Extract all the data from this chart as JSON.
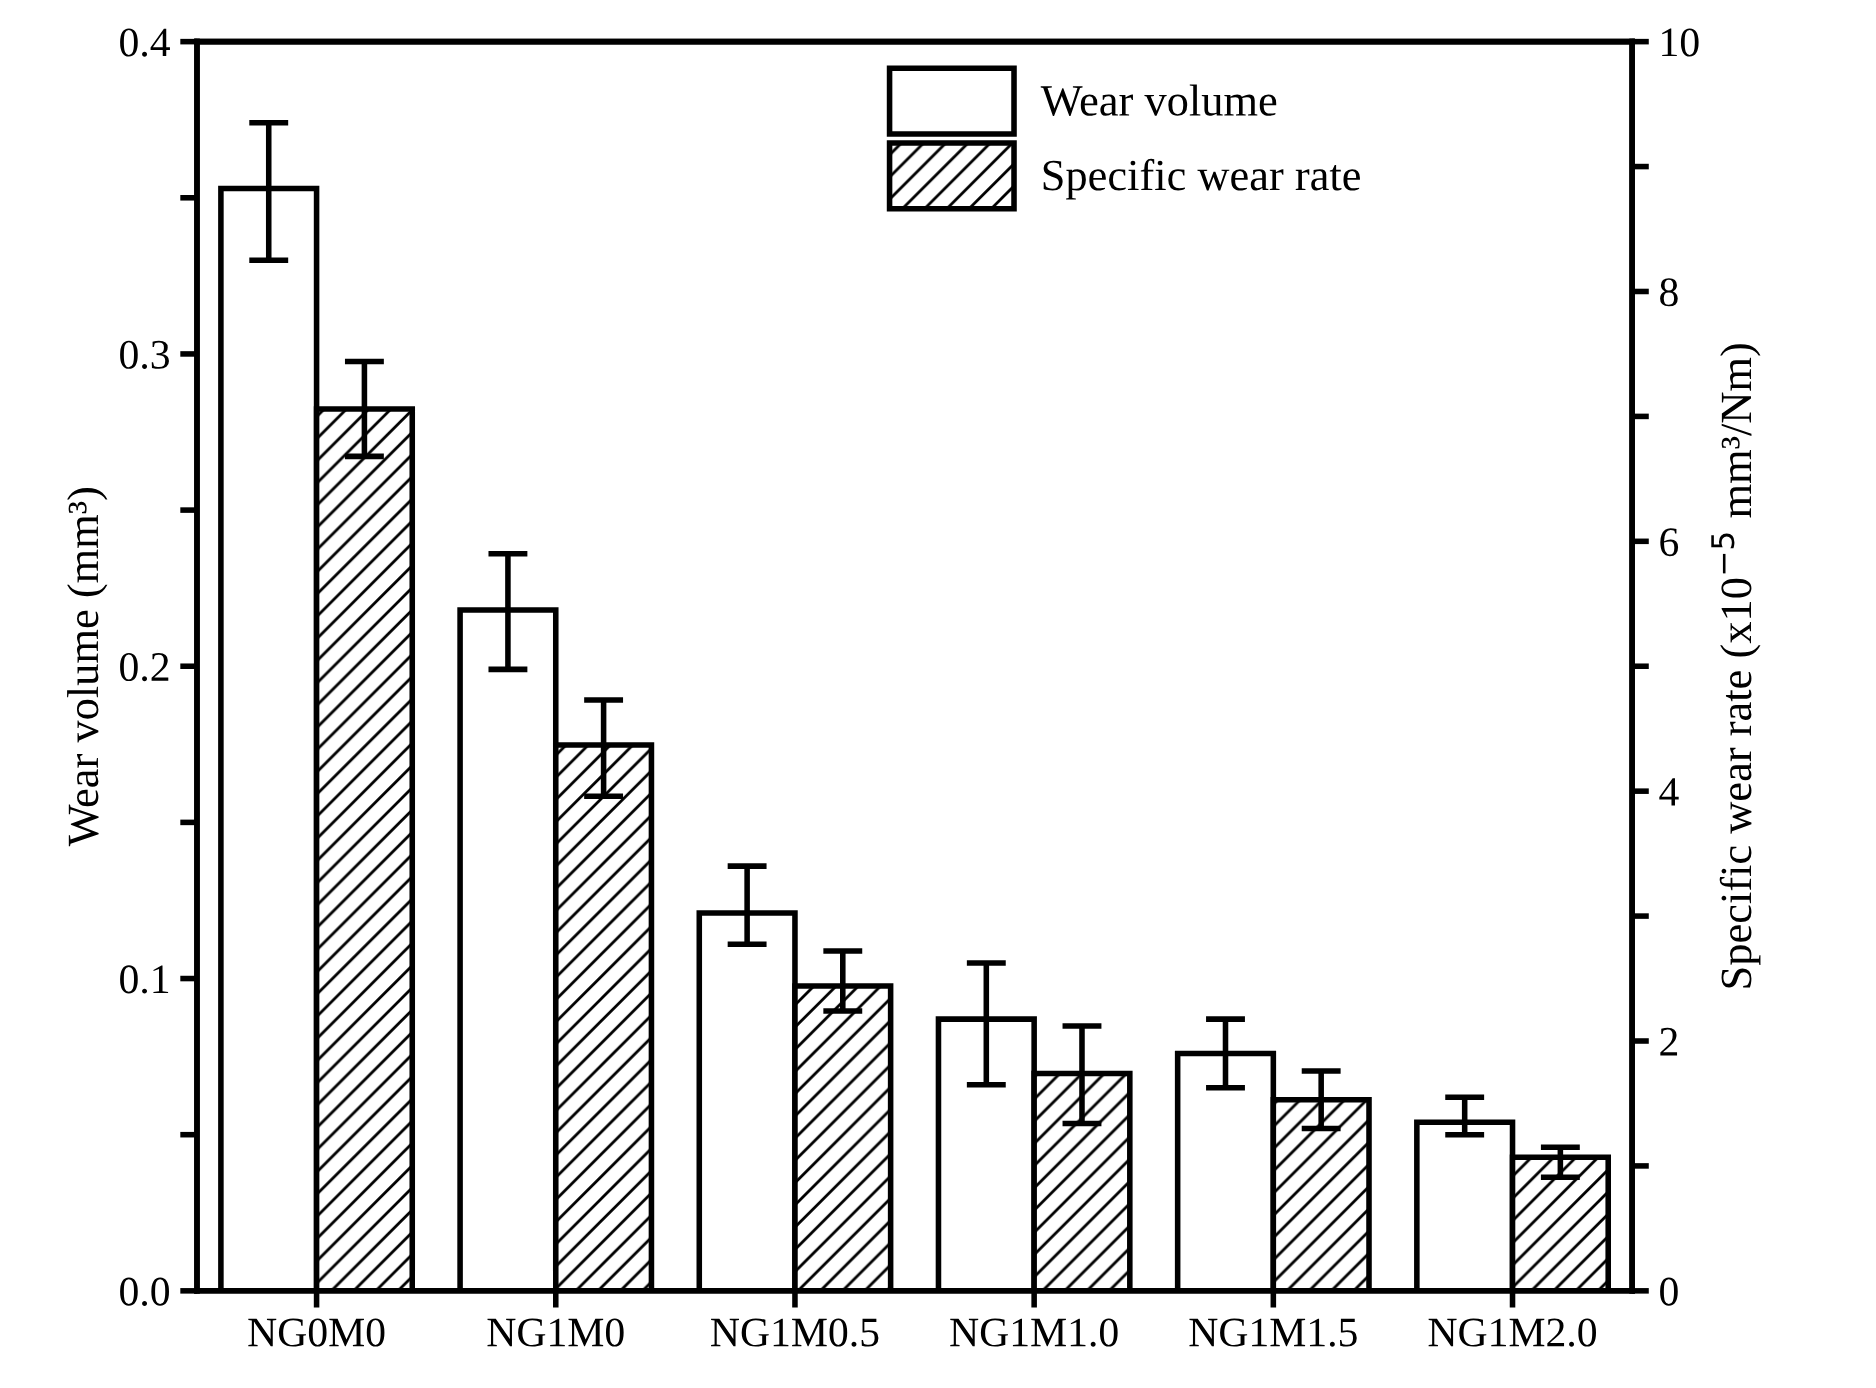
{
  "chart_data": {
    "type": "bar",
    "categories": [
      "NG0M0",
      "NG1M0",
      "NG1M0.5",
      "NG1M1.0",
      "NG1M1.5",
      "NG1M2.0"
    ],
    "ylabel": "Wear volume (mm³)",
    "y2label": "Specific wear rate (x10$^{−5}$ mm³/Nm)",
    "series": [
      {
        "name": "Wear volume",
        "color": "#ffffff",
        "values": [
          0.353,
          0.218,
          0.121,
          0.087,
          0.076,
          0.054
        ],
        "errors": [
          [
            0.33,
            0.374
          ],
          [
            0.199,
            0.236
          ],
          [
            0.111,
            0.136
          ],
          [
            0.066,
            0.105
          ],
          [
            0.065,
            0.087
          ],
          [
            0.05,
            0.062
          ]
        ]
      },
      {
        "name": "Specific wear rate",
        "color": "#000000",
        "axis": "y2",
        "values": [
          7.06,
          4.37,
          2.44,
          1.74,
          1.53,
          1.07
        ],
        "errors": [
          [
            6.68,
            7.44
          ],
          [
            3.96,
            4.73
          ],
          [
            2.24,
            2.72
          ],
          [
            1.34,
            2.12
          ],
          [
            1.3,
            1.76
          ],
          [
            0.91,
            1.15
          ]
        ]
      }
    ],
    "ylim": [
      0,
      0.4
    ],
    "yticks": [
      {
        "value": 0,
        "label": "0.0"
      },
      {
        "value": 0.05,
        "label": null
      },
      0.1,
      {
        "value": 0.15,
        "label": null
      },
      0.2,
      {
        "value": 0.25,
        "label": null
      },
      0.3,
      {
        "value": 0.35,
        "label": null
      },
      0.4
    ],
    "y2lim": [
      0,
      10
    ],
    "y2ticks": [
      0,
      {
        "value": 1,
        "label": null
      },
      2,
      {
        "value": 3,
        "label": null
      },
      4,
      {
        "value": 5,
        "label": null
      },
      6,
      {
        "value": 7,
        "label": null
      },
      8,
      {
        "value": 9,
        "label": null
      },
      10
    ],
    "legend": "top right",
    "grid": false
  }
}
